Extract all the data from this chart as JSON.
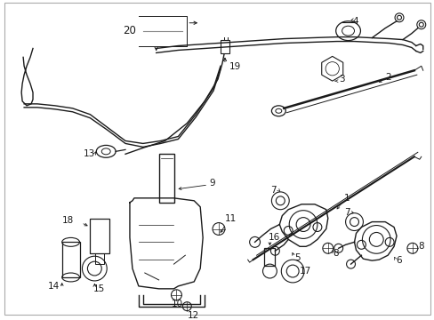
{
  "bg_color": "#ffffff",
  "line_color": "#1a1a1a",
  "fig_width": 4.89,
  "fig_height": 3.6,
  "dpi": 100,
  "border_color": "#aaaaaa",
  "label_fs": 7.5
}
